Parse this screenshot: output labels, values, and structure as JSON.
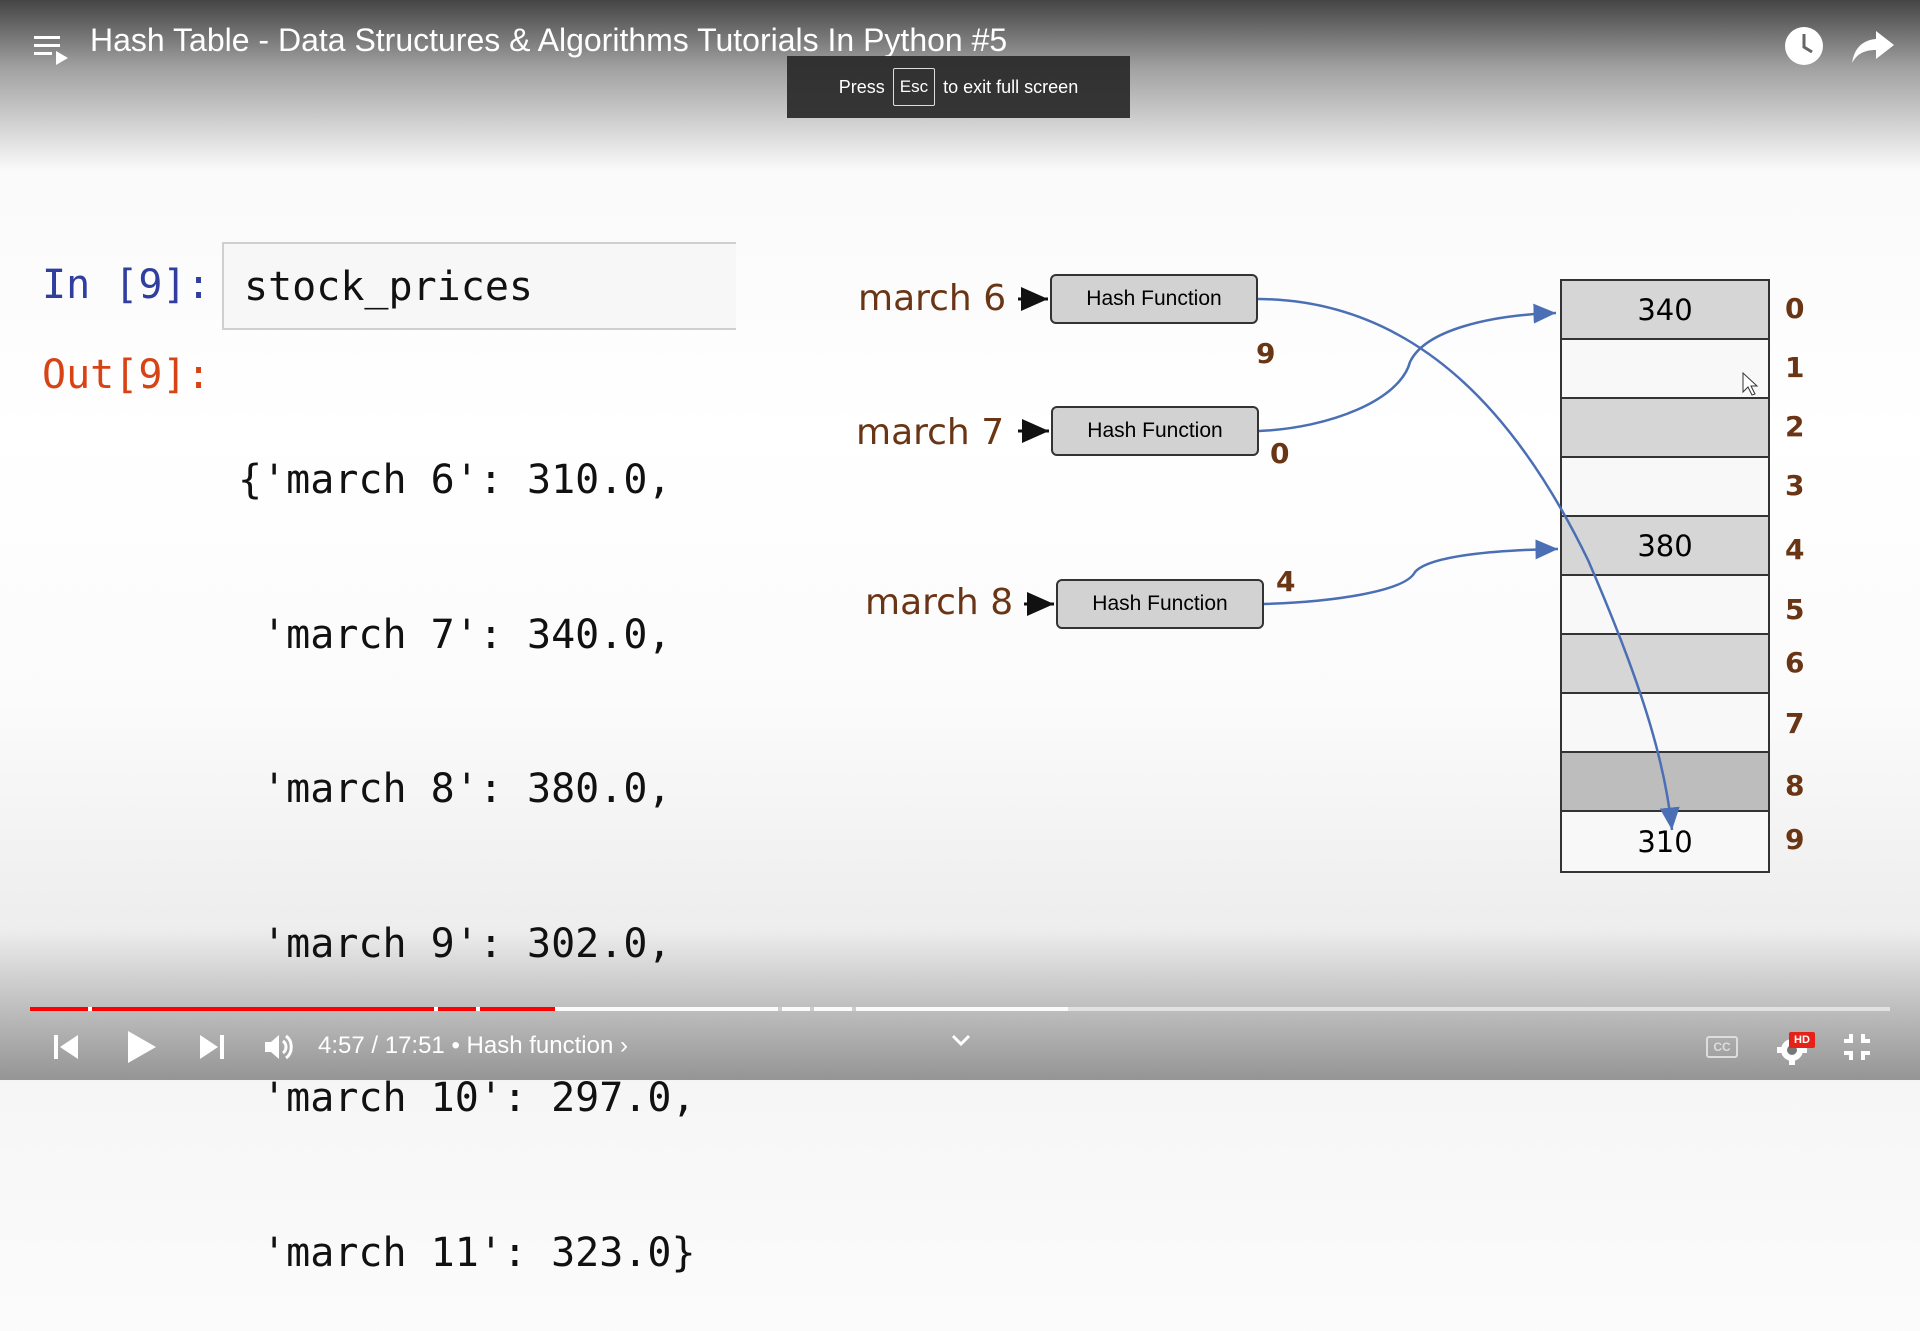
{
  "player": {
    "title": "Hash Table - Data Structures & Algorithms Tutorials In Python #5",
    "toast_before": "Press",
    "toast_key": "Esc",
    "toast_after": "to exit full screen",
    "time_text": "4:57 / 17:51",
    "chapter_sep": "•",
    "chapter": "Hash function",
    "chapter_arrow": "›",
    "progress_played_fraction": 0.282,
    "progress_buffered_fraction": 0.558,
    "icons": [
      "playlist-icon",
      "watch-later-icon",
      "share-icon",
      "previous-icon",
      "play-icon",
      "next-icon",
      "volume-icon",
      "chevron-down-icon",
      "captions-icon",
      "settings-icon",
      "exit-fullscreen-icon"
    ],
    "hd_badge": "HD",
    "cc_label": "CC",
    "accent_color": "#ff0000"
  },
  "notebook": {
    "in_label": "In [9]:",
    "code": "stock_prices",
    "out_label": "Out[9]:",
    "output_lines": [
      "{'march 6': 310.0,",
      " 'march 7': 340.0,",
      " 'march 8': 380.0,",
      " 'march 9': 302.0,",
      " 'march 10': 297.0,",
      " 'march 11': 323.0}"
    ]
  },
  "diagram": {
    "inputs": [
      {
        "key": "march 6",
        "box": "Hash Function",
        "out": "9"
      },
      {
        "key": "march 7",
        "box": "Hash Function",
        "out": "0"
      },
      {
        "key": "march 8",
        "box": "Hash Function",
        "out": "4"
      }
    ],
    "table": [
      {
        "index": "0",
        "value": "340",
        "shade": "gray"
      },
      {
        "index": "1",
        "value": "",
        "shade": "white"
      },
      {
        "index": "2",
        "value": "",
        "shade": "gray"
      },
      {
        "index": "3",
        "value": "",
        "shade": "white"
      },
      {
        "index": "4",
        "value": "380",
        "shade": "gray"
      },
      {
        "index": "5",
        "value": "",
        "shade": "white"
      },
      {
        "index": "6",
        "value": "",
        "shade": "gray"
      },
      {
        "index": "7",
        "value": "",
        "shade": "white"
      },
      {
        "index": "8",
        "value": "",
        "shade": "dark"
      },
      {
        "index": "9",
        "value": "310",
        "shade": "white"
      }
    ],
    "arrow_color": "#4a6fb5",
    "label_color": "#6a3514"
  }
}
